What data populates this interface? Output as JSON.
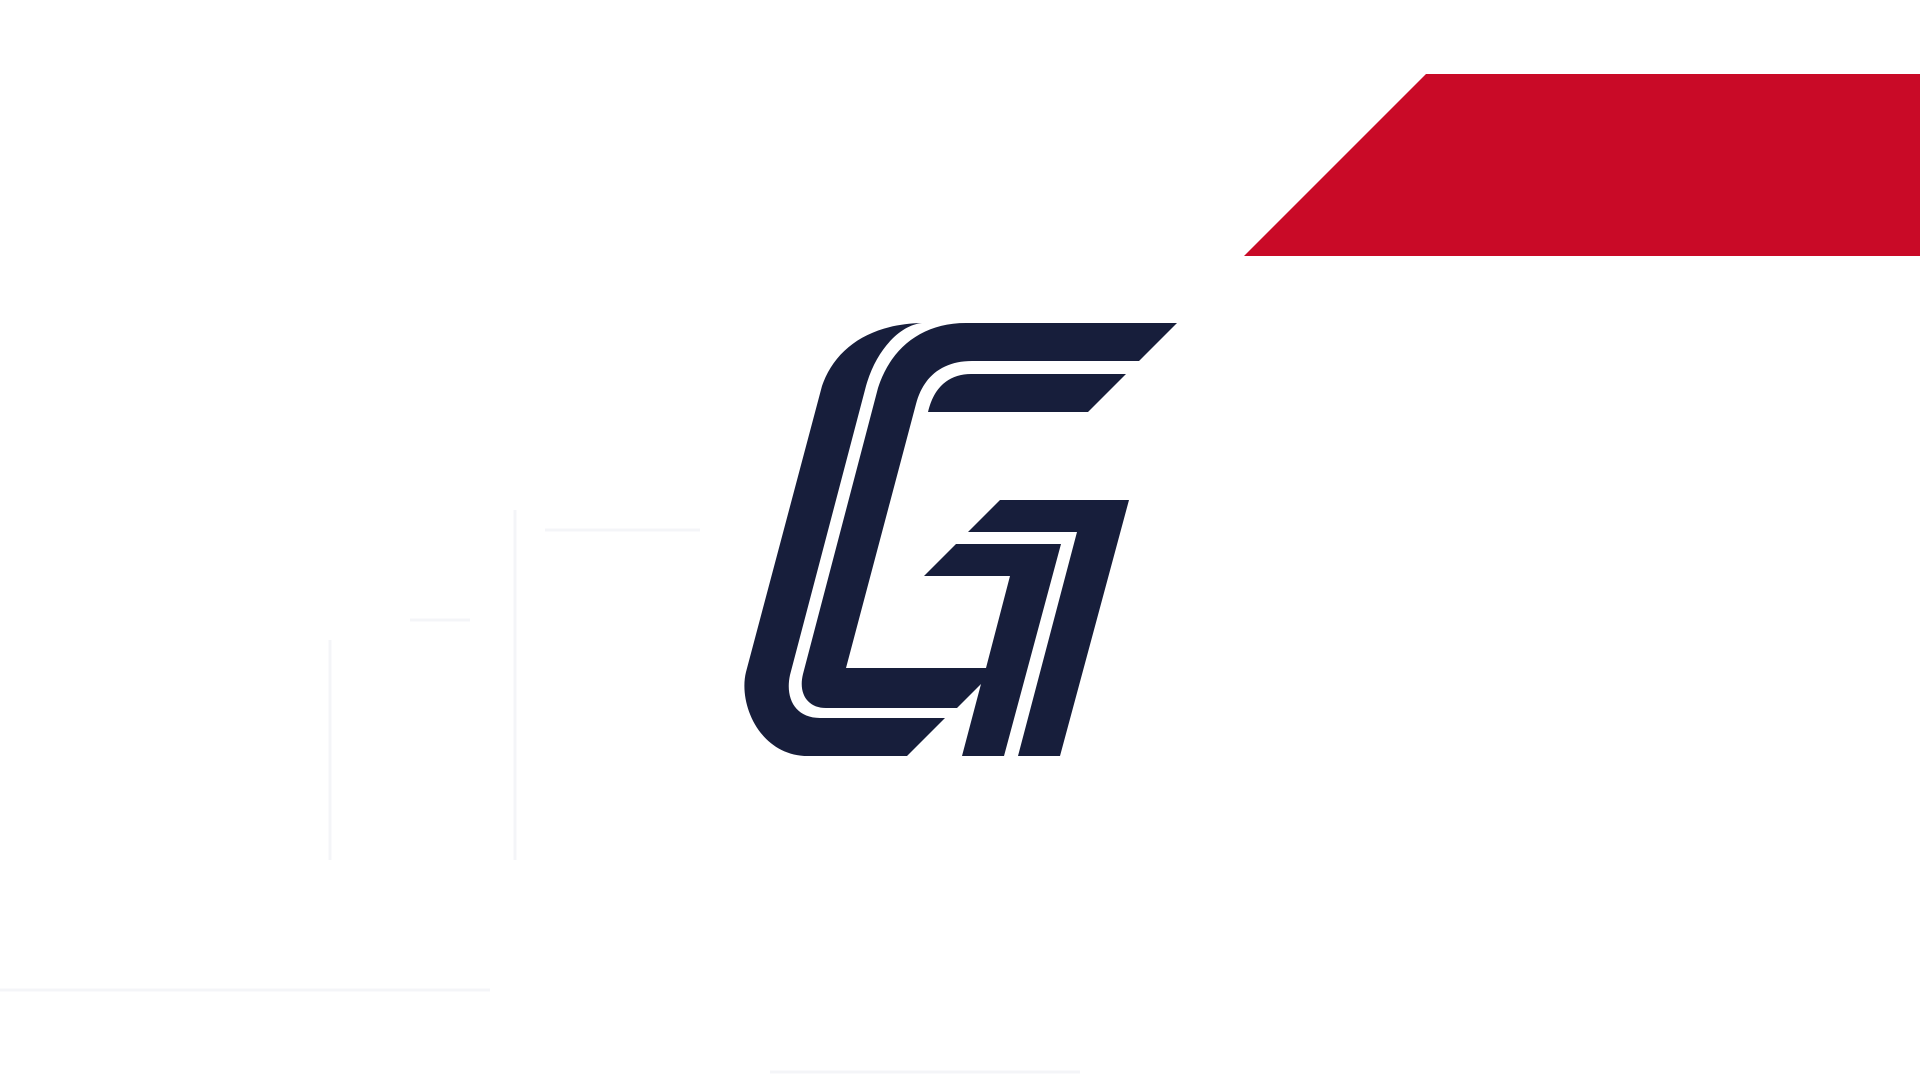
{
  "scene": {
    "background_color": "#ffffff",
    "accent_color": "#c90a27",
    "mark_color": "#171e3b"
  },
  "logo": {
    "icon": "gg-monogram-icon"
  }
}
